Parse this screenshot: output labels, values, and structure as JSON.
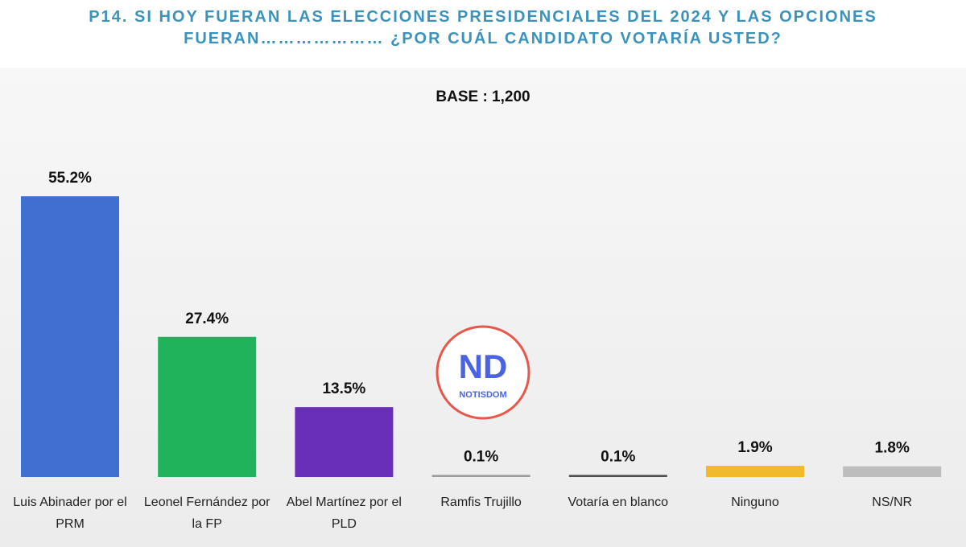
{
  "chart_data": {
    "type": "bar",
    "title": "P14.  SI HOY FUERAN LAS ELECCIONES PRESIDENCIALES DEL 2024 Y LAS OPCIONES FUERAN………………… ¿POR CUÁL CANDIDATO VOTARÍA USTED?",
    "subtitle": "BASE : 1,200",
    "categories": [
      "Luis Abinader por el PRM",
      "Leonel Fernández por la FP",
      "Abel Martínez por el PLD",
      "Ramfis Trujillo",
      "Votaría en blanco",
      "Ninguno",
      "NS/NR"
    ],
    "values": [
      55.2,
      27.4,
      13.5,
      0.1,
      0.1,
      1.9,
      1.8
    ],
    "value_labels": [
      "55.2%",
      "27.4%",
      "13.5%",
      "0.1%",
      "0.1%",
      "1.9%",
      "1.8%"
    ],
    "colors": [
      "#3f6fd0",
      "#21b35b",
      "#6a2fb8",
      "#9c9c9c",
      "#4f4f4f",
      "#f1b92c",
      "#bdbdbd"
    ]
  },
  "watermark": {
    "logo": "ND",
    "text": "NOTISDOM"
  }
}
